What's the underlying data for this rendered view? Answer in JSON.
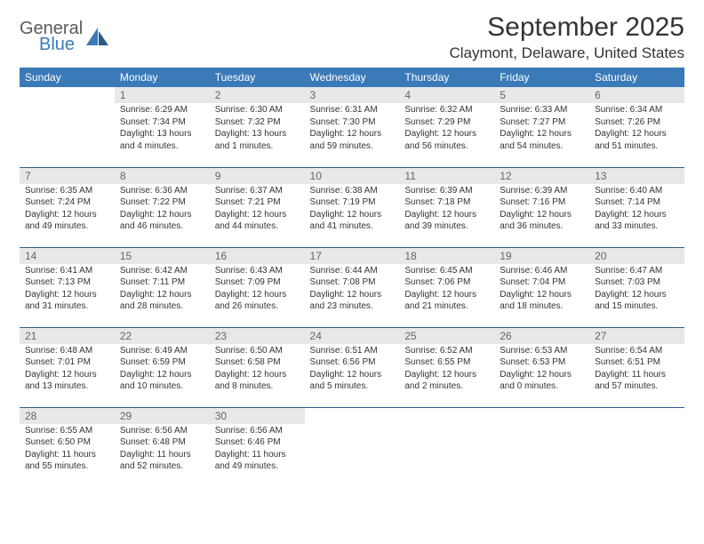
{
  "logo": {
    "word1": "General",
    "word2": "Blue"
  },
  "month_title": "September 2025",
  "location": "Claymont, Delaware, United States",
  "header_bg": "#3a7ab8",
  "header_fg": "#ffffff",
  "daynum_bg": "#e8e8e8",
  "daynum_fg": "#666666",
  "rule_color": "#2f5f8f",
  "body_fontsize": 10,
  "daynames": [
    "Sunday",
    "Monday",
    "Tuesday",
    "Wednesday",
    "Thursday",
    "Friday",
    "Saturday"
  ],
  "weeks": [
    [
      null,
      {
        "n": "1",
        "sunrise": "6:29 AM",
        "sunset": "7:34 PM",
        "daylight": "13 hours and 4 minutes."
      },
      {
        "n": "2",
        "sunrise": "6:30 AM",
        "sunset": "7:32 PM",
        "daylight": "13 hours and 1 minutes."
      },
      {
        "n": "3",
        "sunrise": "6:31 AM",
        "sunset": "7:30 PM",
        "daylight": "12 hours and 59 minutes."
      },
      {
        "n": "4",
        "sunrise": "6:32 AM",
        "sunset": "7:29 PM",
        "daylight": "12 hours and 56 minutes."
      },
      {
        "n": "5",
        "sunrise": "6:33 AM",
        "sunset": "7:27 PM",
        "daylight": "12 hours and 54 minutes."
      },
      {
        "n": "6",
        "sunrise": "6:34 AM",
        "sunset": "7:26 PM",
        "daylight": "12 hours and 51 minutes."
      }
    ],
    [
      {
        "n": "7",
        "sunrise": "6:35 AM",
        "sunset": "7:24 PM",
        "daylight": "12 hours and 49 minutes."
      },
      {
        "n": "8",
        "sunrise": "6:36 AM",
        "sunset": "7:22 PM",
        "daylight": "12 hours and 46 minutes."
      },
      {
        "n": "9",
        "sunrise": "6:37 AM",
        "sunset": "7:21 PM",
        "daylight": "12 hours and 44 minutes."
      },
      {
        "n": "10",
        "sunrise": "6:38 AM",
        "sunset": "7:19 PM",
        "daylight": "12 hours and 41 minutes."
      },
      {
        "n": "11",
        "sunrise": "6:39 AM",
        "sunset": "7:18 PM",
        "daylight": "12 hours and 39 minutes."
      },
      {
        "n": "12",
        "sunrise": "6:39 AM",
        "sunset": "7:16 PM",
        "daylight": "12 hours and 36 minutes."
      },
      {
        "n": "13",
        "sunrise": "6:40 AM",
        "sunset": "7:14 PM",
        "daylight": "12 hours and 33 minutes."
      }
    ],
    [
      {
        "n": "14",
        "sunrise": "6:41 AM",
        "sunset": "7:13 PM",
        "daylight": "12 hours and 31 minutes."
      },
      {
        "n": "15",
        "sunrise": "6:42 AM",
        "sunset": "7:11 PM",
        "daylight": "12 hours and 28 minutes."
      },
      {
        "n": "16",
        "sunrise": "6:43 AM",
        "sunset": "7:09 PM",
        "daylight": "12 hours and 26 minutes."
      },
      {
        "n": "17",
        "sunrise": "6:44 AM",
        "sunset": "7:08 PM",
        "daylight": "12 hours and 23 minutes."
      },
      {
        "n": "18",
        "sunrise": "6:45 AM",
        "sunset": "7:06 PM",
        "daylight": "12 hours and 21 minutes."
      },
      {
        "n": "19",
        "sunrise": "6:46 AM",
        "sunset": "7:04 PM",
        "daylight": "12 hours and 18 minutes."
      },
      {
        "n": "20",
        "sunrise": "6:47 AM",
        "sunset": "7:03 PM",
        "daylight": "12 hours and 15 minutes."
      }
    ],
    [
      {
        "n": "21",
        "sunrise": "6:48 AM",
        "sunset": "7:01 PM",
        "daylight": "12 hours and 13 minutes."
      },
      {
        "n": "22",
        "sunrise": "6:49 AM",
        "sunset": "6:59 PM",
        "daylight": "12 hours and 10 minutes."
      },
      {
        "n": "23",
        "sunrise": "6:50 AM",
        "sunset": "6:58 PM",
        "daylight": "12 hours and 8 minutes."
      },
      {
        "n": "24",
        "sunrise": "6:51 AM",
        "sunset": "6:56 PM",
        "daylight": "12 hours and 5 minutes."
      },
      {
        "n": "25",
        "sunrise": "6:52 AM",
        "sunset": "6:55 PM",
        "daylight": "12 hours and 2 minutes."
      },
      {
        "n": "26",
        "sunrise": "6:53 AM",
        "sunset": "6:53 PM",
        "daylight": "12 hours and 0 minutes."
      },
      {
        "n": "27",
        "sunrise": "6:54 AM",
        "sunset": "6:51 PM",
        "daylight": "11 hours and 57 minutes."
      }
    ],
    [
      {
        "n": "28",
        "sunrise": "6:55 AM",
        "sunset": "6:50 PM",
        "daylight": "11 hours and 55 minutes."
      },
      {
        "n": "29",
        "sunrise": "6:56 AM",
        "sunset": "6:48 PM",
        "daylight": "11 hours and 52 minutes."
      },
      {
        "n": "30",
        "sunrise": "6:56 AM",
        "sunset": "6:46 PM",
        "daylight": "11 hours and 49 minutes."
      },
      null,
      null,
      null,
      null
    ]
  ]
}
